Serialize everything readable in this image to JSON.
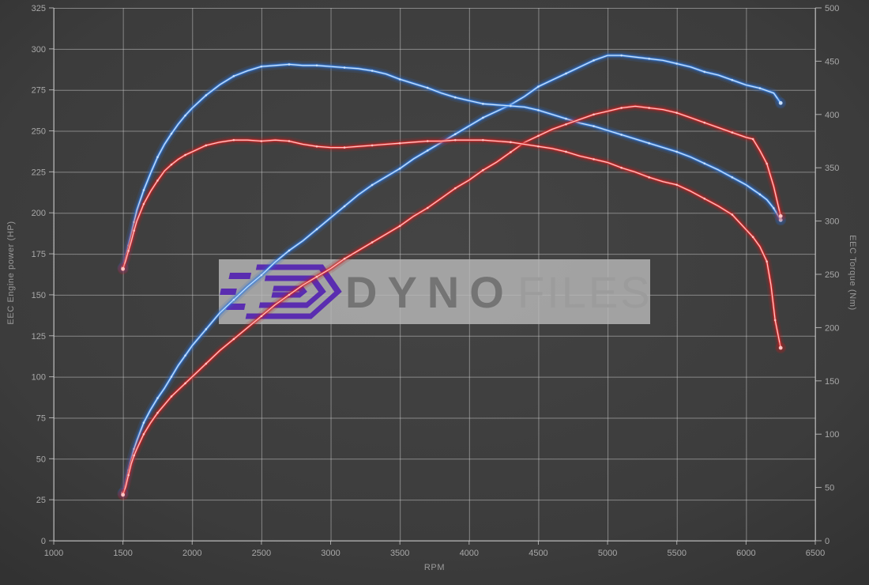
{
  "watermark": {
    "brand_bold": "Dyno",
    "brand_light": "Files",
    "box_color": "#b8b8b8",
    "logo_color": "#5a2db0"
  },
  "colors": {
    "background": "#3d3d3d",
    "grid": "#cfcfcf",
    "axis_text": "#a8a8a8",
    "blue_curve": "#3f8ae8",
    "blue_core": "#cfe4fa",
    "red_curve": "#e03030",
    "red_core": "#ffc9c9"
  },
  "axes": {
    "left_title": "EEC Engine power (HP)",
    "right_title": "EEC Torque (Nm)",
    "x_title": "RPM",
    "left_ticks": [
      0,
      25,
      50,
      75,
      100,
      125,
      150,
      175,
      200,
      225,
      250,
      275,
      300,
      325
    ],
    "right_ticks": [
      0,
      50,
      100,
      150,
      200,
      250,
      300,
      350,
      400,
      450,
      500
    ],
    "x_ticks": [
      1000,
      1500,
      2000,
      2500,
      3000,
      3500,
      4000,
      4500,
      5000,
      5500,
      6000,
      6500
    ]
  },
  "chart_data": {
    "type": "line",
    "xlabel": "RPM",
    "x_range": [
      1000,
      6500
    ],
    "left_axis": {
      "label": "EEC Engine power (HP)",
      "range": [
        0,
        325
      ]
    },
    "right_axis": {
      "label": "EEC Torque (Nm)",
      "range": [
        0,
        500
      ]
    },
    "grid": true,
    "legend": "none",
    "series": [
      {
        "name": "power-blue",
        "axis": "left",
        "unit": "HP",
        "color": "blue",
        "points": [
          [
            1500,
            29
          ],
          [
            1520,
            35
          ],
          [
            1540,
            43
          ],
          [
            1560,
            50
          ],
          [
            1580,
            56
          ],
          [
            1600,
            61
          ],
          [
            1650,
            72
          ],
          [
            1700,
            80
          ],
          [
            1750,
            87
          ],
          [
            1800,
            93
          ],
          [
            1850,
            100
          ],
          [
            1900,
            107
          ],
          [
            1950,
            113
          ],
          [
            2000,
            119
          ],
          [
            2100,
            129
          ],
          [
            2200,
            139
          ],
          [
            2300,
            147
          ],
          [
            2400,
            155
          ],
          [
            2500,
            162
          ],
          [
            2600,
            170
          ],
          [
            2700,
            177
          ],
          [
            2800,
            183
          ],
          [
            2900,
            190
          ],
          [
            3000,
            197
          ],
          [
            3100,
            204
          ],
          [
            3200,
            211
          ],
          [
            3300,
            217
          ],
          [
            3400,
            222
          ],
          [
            3500,
            227
          ],
          [
            3600,
            233
          ],
          [
            3700,
            238
          ],
          [
            3800,
            243
          ],
          [
            3900,
            248
          ],
          [
            4000,
            253
          ],
          [
            4100,
            258
          ],
          [
            4200,
            262
          ],
          [
            4300,
            266
          ],
          [
            4400,
            271
          ],
          [
            4500,
            277
          ],
          [
            4600,
            281
          ],
          [
            4700,
            285
          ],
          [
            4800,
            289
          ],
          [
            4900,
            293
          ],
          [
            5000,
            296
          ],
          [
            5100,
            296
          ],
          [
            5200,
            295
          ],
          [
            5300,
            294
          ],
          [
            5400,
            293
          ],
          [
            5500,
            291
          ],
          [
            5600,
            289
          ],
          [
            5700,
            286
          ],
          [
            5800,
            284
          ],
          [
            5900,
            281
          ],
          [
            6000,
            278
          ],
          [
            6100,
            276
          ],
          [
            6200,
            273
          ],
          [
            6250,
            267
          ]
        ]
      },
      {
        "name": "torque-blue",
        "axis": "right",
        "unit": "Nm",
        "color": "blue",
        "points": [
          [
            1500,
            256
          ],
          [
            1520,
            266
          ],
          [
            1540,
            277
          ],
          [
            1560,
            288
          ],
          [
            1580,
            299
          ],
          [
            1600,
            310
          ],
          [
            1650,
            329
          ],
          [
            1700,
            345
          ],
          [
            1750,
            360
          ],
          [
            1800,
            372
          ],
          [
            1850,
            382
          ],
          [
            1900,
            391
          ],
          [
            1950,
            399
          ],
          [
            2000,
            406
          ],
          [
            2100,
            418
          ],
          [
            2200,
            428
          ],
          [
            2300,
            436
          ],
          [
            2400,
            441
          ],
          [
            2500,
            445
          ],
          [
            2600,
            446
          ],
          [
            2700,
            447
          ],
          [
            2800,
            446
          ],
          [
            2900,
            446
          ],
          [
            3000,
            445
          ],
          [
            3100,
            444
          ],
          [
            3200,
            443
          ],
          [
            3300,
            441
          ],
          [
            3400,
            438
          ],
          [
            3500,
            433
          ],
          [
            3600,
            429
          ],
          [
            3700,
            425
          ],
          [
            3800,
            420
          ],
          [
            3900,
            416
          ],
          [
            4000,
            413
          ],
          [
            4100,
            410
          ],
          [
            4200,
            409
          ],
          [
            4300,
            408
          ],
          [
            4400,
            407
          ],
          [
            4500,
            404
          ],
          [
            4600,
            400
          ],
          [
            4700,
            396
          ],
          [
            4800,
            392
          ],
          [
            4900,
            389
          ],
          [
            5000,
            385
          ],
          [
            5100,
            381
          ],
          [
            5200,
            377
          ],
          [
            5300,
            373
          ],
          [
            5400,
            369
          ],
          [
            5500,
            365
          ],
          [
            5600,
            360
          ],
          [
            5700,
            354
          ],
          [
            5800,
            348
          ],
          [
            5900,
            341
          ],
          [
            6000,
            334
          ],
          [
            6100,
            325
          ],
          [
            6150,
            320
          ],
          [
            6200,
            312
          ],
          [
            6250,
            301
          ]
        ]
      },
      {
        "name": "power-red",
        "axis": "left",
        "unit": "HP",
        "color": "red",
        "points": [
          [
            1500,
            28
          ],
          [
            1520,
            33
          ],
          [
            1540,
            40
          ],
          [
            1560,
            47
          ],
          [
            1580,
            52
          ],
          [
            1600,
            56
          ],
          [
            1650,
            65
          ],
          [
            1700,
            72
          ],
          [
            1750,
            78
          ],
          [
            1800,
            83
          ],
          [
            1850,
            88
          ],
          [
            1900,
            92
          ],
          [
            1950,
            96
          ],
          [
            2000,
            100
          ],
          [
            2100,
            108
          ],
          [
            2200,
            116
          ],
          [
            2300,
            123
          ],
          [
            2400,
            130
          ],
          [
            2500,
            137
          ],
          [
            2600,
            144
          ],
          [
            2700,
            150
          ],
          [
            2800,
            156
          ],
          [
            2900,
            161
          ],
          [
            3000,
            166
          ],
          [
            3100,
            172
          ],
          [
            3200,
            177
          ],
          [
            3300,
            182
          ],
          [
            3400,
            187
          ],
          [
            3500,
            192
          ],
          [
            3600,
            198
          ],
          [
            3700,
            203
          ],
          [
            3800,
            209
          ],
          [
            3900,
            215
          ],
          [
            4000,
            220
          ],
          [
            4100,
            226
          ],
          [
            4200,
            231
          ],
          [
            4300,
            237
          ],
          [
            4400,
            243
          ],
          [
            4500,
            247
          ],
          [
            4600,
            251
          ],
          [
            4700,
            254
          ],
          [
            4800,
            257
          ],
          [
            4900,
            260
          ],
          [
            5000,
            262
          ],
          [
            5100,
            264
          ],
          [
            5200,
            265
          ],
          [
            5300,
            264
          ],
          [
            5400,
            263
          ],
          [
            5500,
            261
          ],
          [
            5600,
            258
          ],
          [
            5700,
            255
          ],
          [
            5800,
            252
          ],
          [
            5900,
            249
          ],
          [
            6000,
            246
          ],
          [
            6050,
            245
          ],
          [
            6100,
            238
          ],
          [
            6150,
            230
          ],
          [
            6200,
            216
          ],
          [
            6250,
            198
          ]
        ]
      },
      {
        "name": "torque-red",
        "axis": "right",
        "unit": "Nm",
        "color": "red",
        "points": [
          [
            1500,
            255
          ],
          [
            1520,
            263
          ],
          [
            1540,
            272
          ],
          [
            1560,
            281
          ],
          [
            1580,
            291
          ],
          [
            1600,
            300
          ],
          [
            1650,
            316
          ],
          [
            1700,
            328
          ],
          [
            1750,
            338
          ],
          [
            1800,
            347
          ],
          [
            1850,
            353
          ],
          [
            1900,
            358
          ],
          [
            1950,
            362
          ],
          [
            2000,
            365
          ],
          [
            2100,
            371
          ],
          [
            2200,
            374
          ],
          [
            2300,
            376
          ],
          [
            2400,
            376
          ],
          [
            2500,
            375
          ],
          [
            2600,
            376
          ],
          [
            2700,
            375
          ],
          [
            2800,
            372
          ],
          [
            2900,
            370
          ],
          [
            3000,
            369
          ],
          [
            3100,
            369
          ],
          [
            3200,
            370
          ],
          [
            3300,
            371
          ],
          [
            3400,
            372
          ],
          [
            3500,
            373
          ],
          [
            3600,
            374
          ],
          [
            3700,
            375
          ],
          [
            3800,
            375
          ],
          [
            3900,
            376
          ],
          [
            4000,
            376
          ],
          [
            4100,
            376
          ],
          [
            4200,
            375
          ],
          [
            4300,
            374
          ],
          [
            4400,
            372
          ],
          [
            4500,
            370
          ],
          [
            4600,
            368
          ],
          [
            4700,
            365
          ],
          [
            4800,
            361
          ],
          [
            4900,
            358
          ],
          [
            5000,
            355
          ],
          [
            5100,
            350
          ],
          [
            5200,
            346
          ],
          [
            5300,
            341
          ],
          [
            5400,
            337
          ],
          [
            5500,
            334
          ],
          [
            5600,
            328
          ],
          [
            5700,
            321
          ],
          [
            5800,
            314
          ],
          [
            5900,
            306
          ],
          [
            6000,
            292
          ],
          [
            6050,
            285
          ],
          [
            6100,
            276
          ],
          [
            6150,
            262
          ],
          [
            6180,
            240
          ],
          [
            6210,
            207
          ],
          [
            6250,
            181
          ]
        ]
      }
    ]
  }
}
